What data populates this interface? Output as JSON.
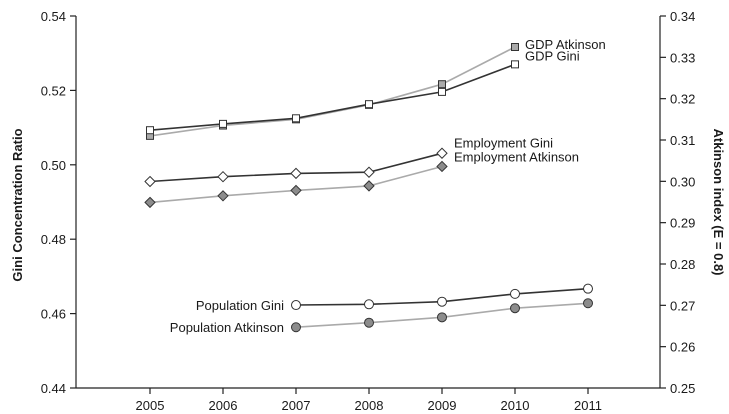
{
  "chart_data": {
    "type": "line",
    "title": "",
    "xlabel": "",
    "ylabel_left": "Gini Concentration Ratio",
    "ylabel_right": "Atkinson index (E = 0.8)",
    "x_ticks": [
      "2005",
      "2006",
      "2007",
      "2008",
      "2009",
      "2010",
      "2011"
    ],
    "left_axis": {
      "ylim": [
        0.44,
        0.54
      ],
      "ticks": [
        "0.44",
        "0.46",
        "0.48",
        "0.50",
        "0.52",
        "0.54"
      ]
    },
    "right_axis": {
      "ylim": [
        0.25,
        0.34
      ],
      "ticks": [
        "0.25",
        "0.26",
        "0.27",
        "0.28",
        "0.29",
        "0.30",
        "0.31",
        "0.32",
        "0.33",
        "0.34"
      ]
    },
    "grid": false,
    "series": [
      {
        "name": "GDP Atkinson",
        "axis": "right",
        "marker": "square",
        "fill": "#aaaaaa",
        "line_color": "#aaaaaa",
        "x": [
          2005,
          2006,
          2007,
          2008,
          2009,
          2010
        ],
        "values": [
          0.311,
          0.3135,
          0.315,
          0.3185,
          0.3235,
          0.3325
        ]
      },
      {
        "name": "GDP Gini",
        "axis": "left",
        "marker": "square",
        "fill": "#ffffff",
        "line_color": "#333333",
        "x": [
          2005,
          2006,
          2007,
          2008,
          2009,
          2010
        ],
        "values": [
          0.5093,
          0.511,
          0.5125,
          0.5163,
          0.5196,
          0.527
        ]
      },
      {
        "name": "Employment Gini",
        "axis": "left",
        "marker": "diamond",
        "fill": "#ffffff",
        "line_color": "#333333",
        "x": [
          2005,
          2006,
          2007,
          2008,
          2009
        ],
        "values": [
          0.4955,
          0.4968,
          0.4977,
          0.498,
          0.5031
        ]
      },
      {
        "name": "Employment Atkinson",
        "axis": "right",
        "marker": "diamond",
        "fill": "#8c8c8c",
        "line_color": "#aaaaaa",
        "x": [
          2005,
          2006,
          2007,
          2008,
          2009
        ],
        "values": [
          0.2949,
          0.2965,
          0.2978,
          0.2989,
          0.3036
        ]
      },
      {
        "name": "Population Gini",
        "axis": "left",
        "marker": "circle",
        "fill": "#ffffff",
        "line_color": "#333333",
        "x": [
          2007,
          2008,
          2009,
          2010,
          2011
        ],
        "values": [
          0.4623,
          0.4625,
          0.4632,
          0.4653,
          0.4667
        ]
      },
      {
        "name": "Population Atkinson",
        "axis": "right",
        "marker": "circle",
        "fill": "#8c8c8c",
        "line_color": "#aaaaaa",
        "x": [
          2007,
          2008,
          2009,
          2010,
          2011
        ],
        "values": [
          0.2647,
          0.2658,
          0.2671,
          0.2693,
          0.2705
        ]
      }
    ]
  }
}
